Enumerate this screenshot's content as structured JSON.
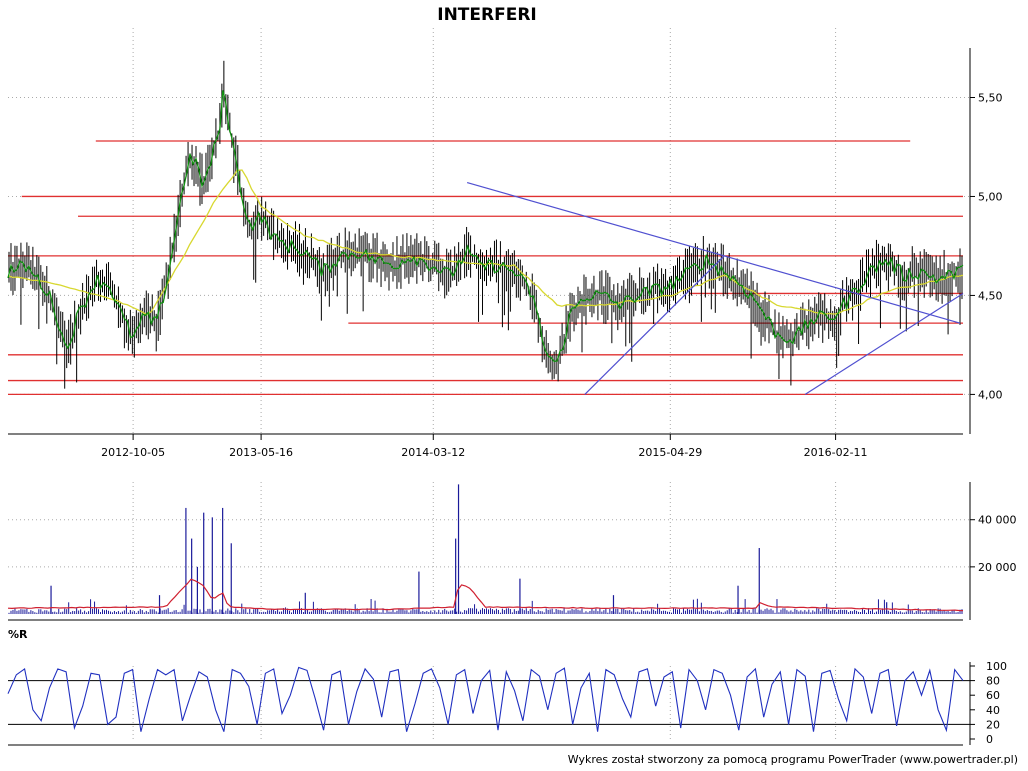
{
  "title": "INTERFERI",
  "footer": "Wykres został stworzony za pomocą programu PowerTrader (www.powertrader.pl)",
  "colors": {
    "price_bars": "#000000",
    "fast_ma": "#109010",
    "slow_ma": "#d8d830",
    "support_resistance": "#e03030",
    "trendline": "#5050d0",
    "volume_bars": "#1a1a9a",
    "volume_ma": "#d02030",
    "williams_r": "#2030c0",
    "grid": "#aaaaaa"
  },
  "chart_data": [
    {
      "type": "line",
      "name": "price",
      "x_range": [
        "2012-03-01",
        "2016-09-20"
      ],
      "y_range": [
        3.8,
        5.75
      ],
      "x_ticks": [
        {
          "date": "2012-10-05",
          "label": "2012-10-05"
        },
        {
          "date": "2013-05-16",
          "label": "2013-05-16"
        },
        {
          "date": "2014-03-12",
          "label": "2014-03-12"
        },
        {
          "date": "2015-04-29",
          "label": "2015-04-29"
        },
        {
          "date": "2016-02-11",
          "label": "2016-02-11"
        }
      ],
      "y_ticks": [
        {
          "value": 4.0,
          "label": "4,00"
        },
        {
          "value": 4.5,
          "label": "4,50"
        },
        {
          "value": 5.0,
          "label": "5,00"
        },
        {
          "value": 5.5,
          "label": "5,50"
        }
      ],
      "grid": true,
      "close_series": [
        [
          "2012-03-01",
          4.62
        ],
        [
          "2012-04-01",
          4.65
        ],
        [
          "2012-05-01",
          4.55
        ],
        [
          "2012-05-20",
          4.45
        ],
        [
          "2012-06-10",
          4.22
        ],
        [
          "2012-07-01",
          4.4
        ],
        [
          "2012-08-01",
          4.58
        ],
        [
          "2012-08-25",
          4.55
        ],
        [
          "2012-09-15",
          4.4
        ],
        [
          "2012-10-05",
          4.28
        ],
        [
          "2012-10-25",
          4.4
        ],
        [
          "2012-11-15",
          4.35
        ],
        [
          "2012-12-05",
          4.6
        ],
        [
          "2012-12-25",
          4.95
        ],
        [
          "2013-01-10",
          5.2
        ],
        [
          "2013-01-25",
          5.15
        ],
        [
          "2013-02-05",
          5.05
        ],
        [
          "2013-02-20",
          5.2
        ],
        [
          "2013-03-05",
          5.35
        ],
        [
          "2013-03-12",
          5.55
        ],
        [
          "2013-03-25",
          5.3
        ],
        [
          "2013-04-10",
          5.05
        ],
        [
          "2013-04-25",
          4.85
        ],
        [
          "2013-05-16",
          4.9
        ],
        [
          "2013-06-10",
          4.78
        ],
        [
          "2013-07-05",
          4.75
        ],
        [
          "2013-08-01",
          4.72
        ],
        [
          "2013-09-01",
          4.62
        ],
        [
          "2013-10-01",
          4.7
        ],
        [
          "2013-11-01",
          4.72
        ],
        [
          "2013-12-01",
          4.68
        ],
        [
          "2014-01-01",
          4.65
        ],
        [
          "2014-02-01",
          4.7
        ],
        [
          "2014-03-12",
          4.65
        ],
        [
          "2014-04-10",
          4.6
        ],
        [
          "2014-05-10",
          4.72
        ],
        [
          "2014-06-01",
          4.65
        ],
        [
          "2014-07-01",
          4.65
        ],
        [
          "2014-08-01",
          4.62
        ],
        [
          "2014-09-01",
          4.5
        ],
        [
          "2014-09-25",
          4.2
        ],
        [
          "2014-10-15",
          4.15
        ],
        [
          "2014-11-05",
          4.4
        ],
        [
          "2014-12-01",
          4.5
        ],
        [
          "2015-01-01",
          4.5
        ],
        [
          "2015-02-01",
          4.45
        ],
        [
          "2015-03-01",
          4.5
        ],
        [
          "2015-04-29",
          4.55
        ],
        [
          "2015-06-01",
          4.62
        ],
        [
          "2015-07-01",
          4.68
        ],
        [
          "2015-08-01",
          4.62
        ],
        [
          "2015-09-01",
          4.55
        ],
        [
          "2015-10-01",
          4.45
        ],
        [
          "2015-11-01",
          4.3
        ],
        [
          "2015-12-01",
          4.28
        ],
        [
          "2016-01-01",
          4.38
        ],
        [
          "2016-02-11",
          4.4
        ],
        [
          "2016-03-10",
          4.5
        ],
        [
          "2016-04-10",
          4.62
        ],
        [
          "2016-05-10",
          4.68
        ],
        [
          "2016-06-10",
          4.6
        ],
        [
          "2016-07-10",
          4.62
        ],
        [
          "2016-08-10",
          4.58
        ],
        [
          "2016-09-10",
          4.62
        ]
      ],
      "slow_ma_series": [
        [
          "2012-03-01",
          4.6
        ],
        [
          "2012-06-01",
          4.55
        ],
        [
          "2012-09-01",
          4.48
        ],
        [
          "2012-11-01",
          4.4
        ],
        [
          "2013-01-01",
          4.7
        ],
        [
          "2013-03-01",
          5.0
        ],
        [
          "2013-04-10",
          5.15
        ],
        [
          "2013-05-16",
          4.95
        ],
        [
          "2013-08-01",
          4.8
        ],
        [
          "2013-11-01",
          4.72
        ],
        [
          "2014-03-12",
          4.68
        ],
        [
          "2014-08-01",
          4.65
        ],
        [
          "2014-10-15",
          4.45
        ],
        [
          "2015-01-01",
          4.45
        ],
        [
          "2015-04-29",
          4.5
        ],
        [
          "2015-08-01",
          4.6
        ],
        [
          "2015-11-01",
          4.45
        ],
        [
          "2016-02-11",
          4.4
        ],
        [
          "2016-05-10",
          4.52
        ],
        [
          "2016-09-10",
          4.6
        ]
      ],
      "horizontal_levels": [
        {
          "value": 5.28,
          "from": "2012-08-01",
          "to": "2016-06-20"
        },
        {
          "value": 5.0,
          "from": "2012-03-25",
          "to": "2016-09-20"
        },
        {
          "value": 4.9,
          "from": "2012-07-01",
          "to": "2016-09-20"
        },
        {
          "value": 4.7,
          "from": "2012-03-01",
          "to": "2016-09-20"
        },
        {
          "value": 4.51,
          "from": "2015-06-01",
          "to": "2016-09-20"
        },
        {
          "value": 4.36,
          "from": "2013-10-15",
          "to": "2016-09-20"
        },
        {
          "value": 4.2,
          "from": "2012-03-01",
          "to": "2016-09-20"
        },
        {
          "value": 4.07,
          "from": "2012-03-01",
          "to": "2016-09-20"
        },
        {
          "value": 4.0,
          "from": "2012-03-01",
          "to": "2016-09-20"
        }
      ],
      "trendlines": [
        {
          "from": [
            "2014-05-10",
            5.07
          ],
          "to": [
            "2016-09-15",
            4.36
          ]
        },
        {
          "from": [
            "2014-12-01",
            4.0
          ],
          "to": [
            "2015-08-01",
            4.7
          ]
        },
        {
          "from": [
            "2015-12-20",
            4.0
          ],
          "to": [
            "2016-09-20",
            4.51
          ]
        }
      ]
    },
    {
      "type": "bar",
      "name": "volume",
      "y_range": [
        0,
        56000
      ],
      "y_ticks": [
        {
          "value": 20000,
          "label": "20 000"
        },
        {
          "value": 40000,
          "label": "40 000"
        }
      ],
      "grid": true,
      "spikes": [
        [
          "2012-05-15",
          12000
        ],
        [
          "2012-11-20",
          8000
        ],
        [
          "2013-01-05",
          45000
        ],
        [
          "2013-01-15",
          32000
        ],
        [
          "2013-01-25",
          20000
        ],
        [
          "2013-02-05",
          43000
        ],
        [
          "2013-02-20",
          41000
        ],
        [
          "2013-03-10",
          45000
        ],
        [
          "2013-03-25",
          30000
        ],
        [
          "2013-08-01",
          9000
        ],
        [
          "2014-02-15",
          18000
        ],
        [
          "2014-04-25",
          55000
        ],
        [
          "2014-04-20",
          32000
        ],
        [
          "2014-08-10",
          15000
        ],
        [
          "2015-01-20",
          8000
        ],
        [
          "2015-08-25",
          12000
        ],
        [
          "2015-10-01",
          28000
        ],
        [
          "2016-05-10",
          5000
        ]
      ],
      "ma_series": [
        [
          "2012-03-01",
          2500
        ],
        [
          "2012-12-01",
          3000
        ],
        [
          "2013-01-15",
          15000
        ],
        [
          "2013-02-05",
          12000
        ],
        [
          "2013-02-20",
          6000
        ],
        [
          "2013-03-10",
          9000
        ],
        [
          "2013-03-20",
          3000
        ],
        [
          "2013-06-01",
          2000
        ],
        [
          "2014-01-01",
          2000
        ],
        [
          "2014-04-20",
          3000
        ],
        [
          "2014-04-25",
          13000
        ],
        [
          "2014-05-15",
          11000
        ],
        [
          "2014-06-10",
          3000
        ],
        [
          "2015-01-01",
          2500
        ],
        [
          "2015-09-25",
          2500
        ],
        [
          "2015-10-01",
          5000
        ],
        [
          "2015-10-20",
          3000
        ],
        [
          "2016-09-20",
          1500
        ]
      ]
    },
    {
      "type": "line",
      "name": "williams_r",
      "label": "%R",
      "y_range": [
        0,
        100
      ],
      "y_ticks": [
        {
          "value": 0,
          "label": "0"
        },
        {
          "value": 20,
          "label": "20"
        },
        {
          "value": 40,
          "label": "40"
        },
        {
          "value": 60,
          "label": "60"
        },
        {
          "value": 80,
          "label": "80"
        },
        {
          "value": 100,
          "label": "100"
        }
      ],
      "reference_lines": [
        20,
        80
      ],
      "values_approx": [
        62,
        88,
        96,
        40,
        25,
        70,
        96,
        92,
        15,
        45,
        90,
        88,
        20,
        30,
        90,
        95,
        10,
        55,
        95,
        88,
        95,
        25,
        60,
        92,
        85,
        40,
        10,
        95,
        90,
        72,
        20,
        90,
        96,
        35,
        60,
        98,
        94,
        55,
        12,
        88,
        93,
        20,
        65,
        96,
        82,
        30,
        92,
        95,
        10,
        48,
        90,
        96,
        70,
        20,
        88,
        95,
        35,
        80,
        94,
        12,
        92,
        66,
        25,
        95,
        86,
        40,
        90,
        97,
        20,
        70,
        90,
        10,
        95,
        88,
        55,
        30,
        92,
        96,
        45,
        85,
        92,
        15,
        95,
        80,
        40,
        95,
        90,
        60,
        12,
        85,
        96,
        30,
        75,
        92,
        20,
        95,
        86,
        10,
        90,
        94,
        55,
        25,
        96,
        85,
        35,
        90,
        95,
        18,
        80,
        92,
        60,
        94,
        40,
        12,
        95,
        80
      ]
    }
  ]
}
